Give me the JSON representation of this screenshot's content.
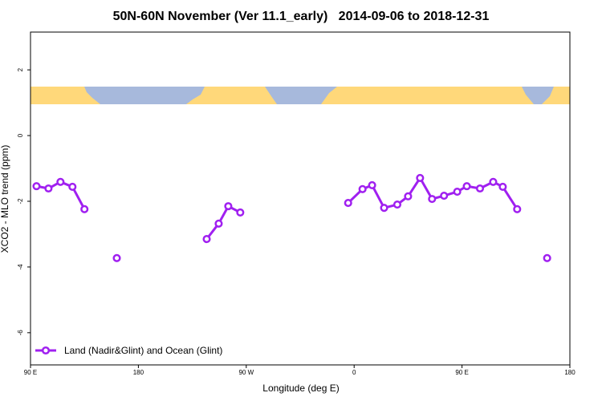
{
  "chart_data": {
    "type": "line",
    "title": "50N-60N November (Ver 11.1_early)   2014-09-06 to 2018-12-31",
    "x_label": "Longitude (deg E)",
    "y_label": "XCO2 - MLO trend (ppm)",
    "x": [
      95,
      105,
      115,
      125,
      135,
      145,
      162,
      200,
      237,
      247,
      255,
      265,
      300,
      355,
      367,
      375,
      385,
      396,
      405,
      415,
      425,
      435,
      446,
      454,
      465,
      476,
      484,
      496,
      510,
      521
    ],
    "series": [
      {
        "name": "Land (Nadir&Glint) and Ocean (Glint)",
        "color": "#a020f0",
        "values": [
          -1.54,
          -1.61,
          -1.41,
          -1.56,
          -2.24,
          null,
          -3.73,
          null,
          -3.15,
          -2.68,
          -2.15,
          -2.34,
          null,
          -2.05,
          -1.63,
          -1.51,
          -2.2,
          -2.1,
          -1.85,
          -1.29,
          -1.93,
          -1.83,
          -1.71,
          -1.54,
          -1.61,
          -1.41,
          -1.56,
          -2.24,
          null,
          -3.73
        ]
      }
    ],
    "xlim": [
      90,
      540
    ],
    "xticks": [
      {
        "value": 90,
        "label": "90 E"
      },
      {
        "value": 180,
        "label": "180"
      },
      {
        "value": 270,
        "label": "90 W"
      },
      {
        "value": 360,
        "label": "0"
      },
      {
        "value": 450,
        "label": "90 E"
      },
      {
        "value": 540,
        "label": "180"
      }
    ],
    "ylim": [
      -6.98,
      3.15
    ],
    "yticks": [
      -6,
      -4,
      -2,
      0,
      2
    ],
    "grid": false,
    "legend": "bottom-left"
  }
}
